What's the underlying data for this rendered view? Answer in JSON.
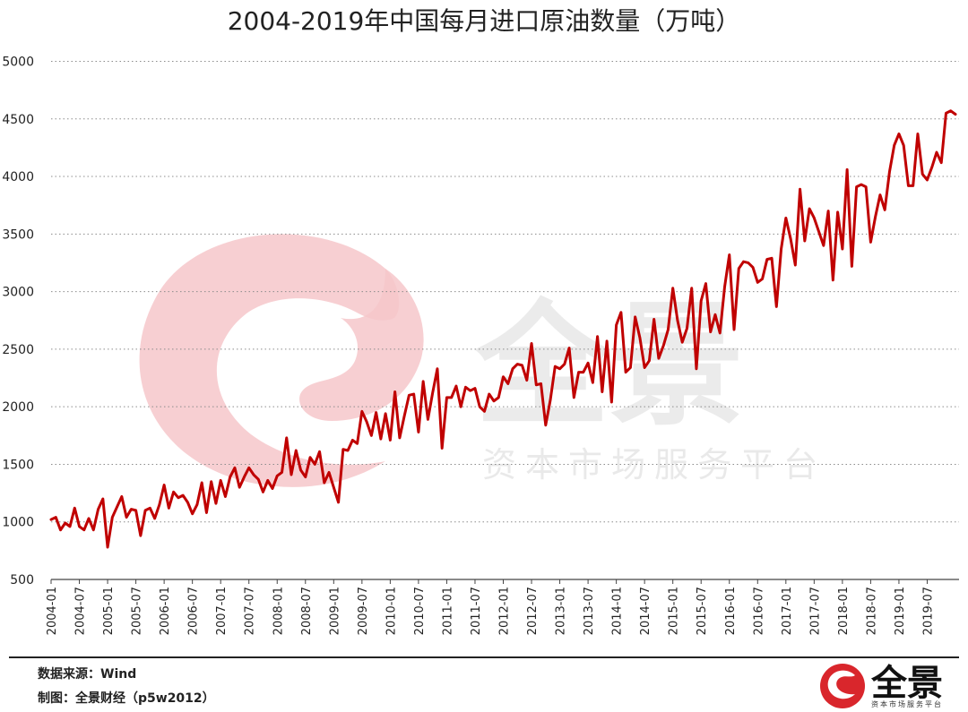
{
  "chart_data": {
    "type": "line",
    "title": "2004-2019年中国每月进口原油数量（万吨）",
    "xlabel": "",
    "ylabel": "",
    "ylim": [
      500,
      5000
    ],
    "yticks": [
      500,
      1000,
      1500,
      2000,
      2500,
      3000,
      3500,
      4000,
      4500,
      5000
    ],
    "grid": true,
    "x_tick_labels": [
      "2004-01",
      "2004-07",
      "2005-01",
      "2005-07",
      "2006-01",
      "2006-07",
      "2007-01",
      "2007-07",
      "2008-01",
      "2008-07",
      "2009-01",
      "2009-07",
      "2010-01",
      "2010-07",
      "2011-01",
      "2011-07",
      "2012-01",
      "2012-07",
      "2013-01",
      "2013-07",
      "2014-01",
      "2014-07",
      "2015-01",
      "2015-07",
      "2016-01",
      "2016-07",
      "2017-01",
      "2017-07",
      "2018-01",
      "2018-07",
      "2019-01",
      "2019-07"
    ],
    "x_start": "2004-01",
    "series": [
      {
        "name": "每月进口原油数量",
        "color": "#c00000",
        "values": [
          1020,
          1040,
          930,
          990,
          960,
          1120,
          960,
          930,
          1030,
          930,
          1110,
          1200,
          780,
          1040,
          1130,
          1220,
          1040,
          1110,
          1100,
          880,
          1100,
          1120,
          1030,
          1150,
          1320,
          1120,
          1260,
          1210,
          1230,
          1170,
          1070,
          1150,
          1340,
          1080,
          1350,
          1160,
          1360,
          1220,
          1390,
          1470,
          1300,
          1390,
          1470,
          1410,
          1370,
          1260,
          1360,
          1290,
          1400,
          1430,
          1730,
          1410,
          1620,
          1450,
          1390,
          1560,
          1500,
          1610,
          1340,
          1430,
          1300,
          1170,
          1630,
          1620,
          1710,
          1680,
          1960,
          1870,
          1750,
          1950,
          1720,
          1940,
          1710,
          2130,
          1730,
          1920,
          2100,
          2110,
          1780,
          2220,
          1890,
          2120,
          2330,
          1640,
          2080,
          2080,
          2180,
          2000,
          2170,
          2140,
          2160,
          2000,
          1960,
          2110,
          2050,
          2080,
          2260,
          2200,
          2330,
          2370,
          2360,
          2230,
          2550,
          2190,
          2200,
          1840,
          2060,
          2350,
          2330,
          2370,
          2510,
          2080,
          2300,
          2300,
          2380,
          2210,
          2610,
          2130,
          2570,
          2040,
          2710,
          2820,
          2300,
          2340,
          2780,
          2600,
          2340,
          2400,
          2760,
          2420,
          2530,
          2670,
          3030,
          2750,
          2560,
          2680,
          3030,
          2330,
          2920,
          3070,
          2650,
          2800,
          2640,
          3040,
          3320,
          2670,
          3200,
          3260,
          3250,
          3210,
          3080,
          3110,
          3280,
          3290,
          2870,
          3370,
          3640,
          3460,
          3230,
          3890,
          3440,
          3720,
          3640,
          3520,
          3400,
          3700,
          3100,
          3690,
          3370,
          4060,
          3220,
          3910,
          3930,
          3910,
          3430,
          3650,
          3840,
          3710,
          4040,
          4270,
          4370,
          4270,
          3920,
          3920,
          4370,
          4020,
          3970,
          4080,
          4210,
          4120,
          4550,
          4570,
          4540
        ]
      }
    ]
  },
  "watermark": {
    "brand": "全景",
    "tagline": "资本市场服务平台"
  },
  "footer": {
    "source": "数据来源：Wind",
    "credit": "制图：全景财经（p5w2012）",
    "logo_name": "全景",
    "logo_tagline": "资本市场服务平台"
  },
  "colors": {
    "series": "#c00000",
    "logo_red": "#d9262c",
    "watermark_pink": "#f6c7ca"
  }
}
